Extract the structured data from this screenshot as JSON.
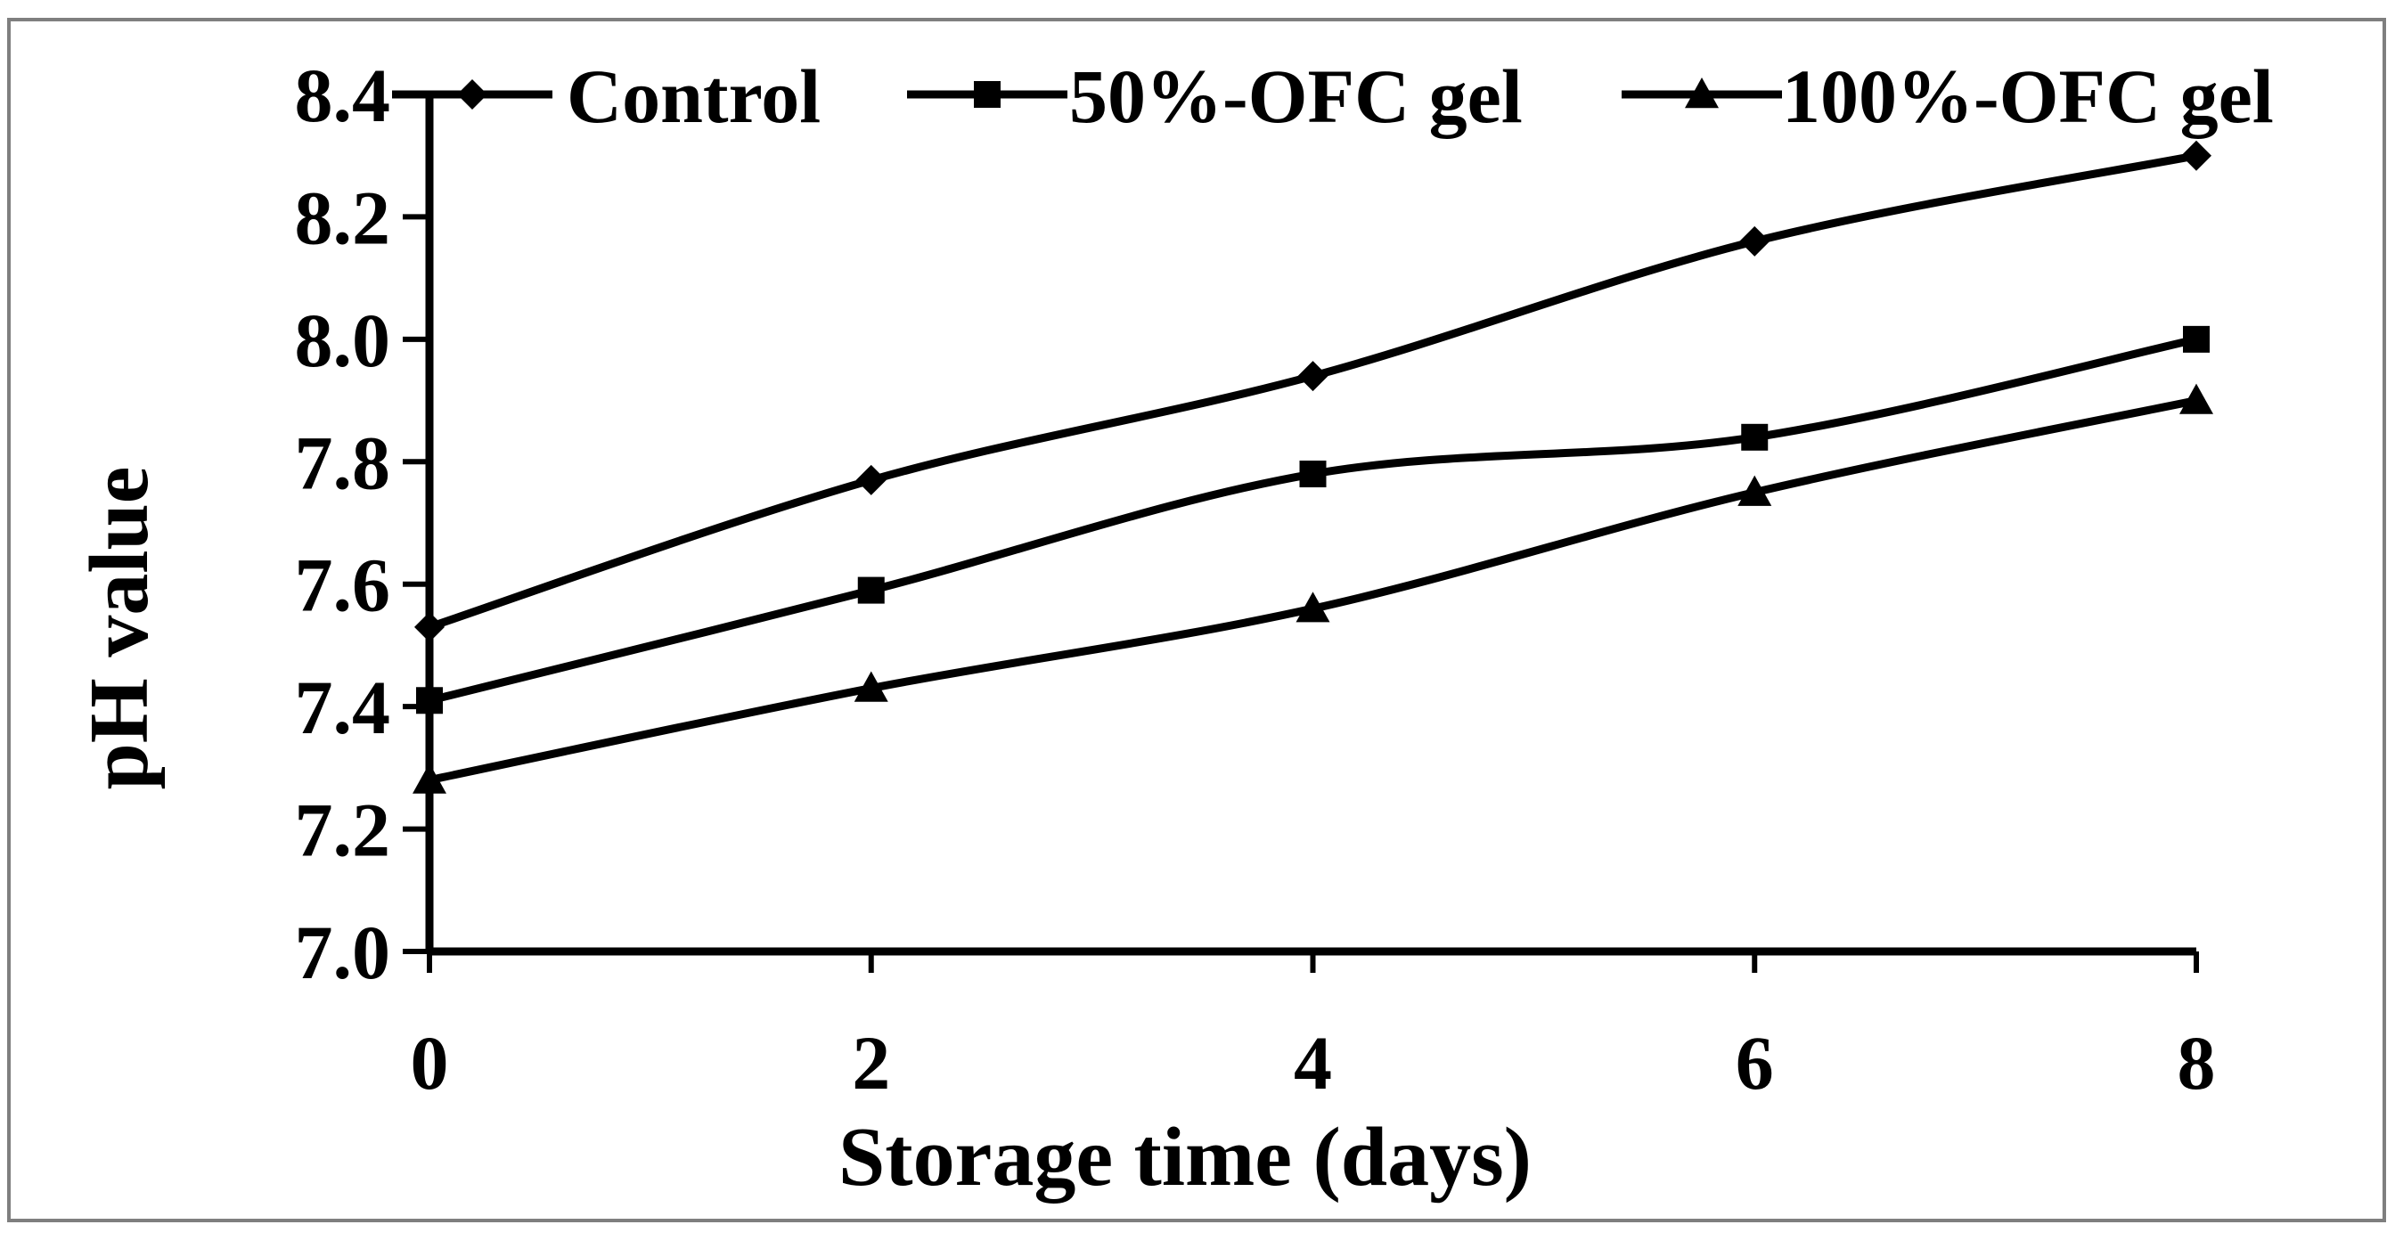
{
  "chart_data": {
    "type": "line",
    "title": "",
    "xlabel": "Storage time (days)",
    "ylabel": "pH value",
    "x": [
      0,
      2,
      4,
      6,
      8
    ],
    "xticks": [
      0,
      2,
      4,
      6,
      8
    ],
    "xtick_labels": [
      "0",
      "2",
      "4",
      "6",
      "8"
    ],
    "yticks": [
      7.0,
      7.2,
      7.4,
      7.6,
      7.8,
      8.0,
      8.2,
      8.4
    ],
    "ytick_labels": [
      "7.0",
      "7.2",
      "7.4",
      "7.6",
      "7.8",
      "8.0",
      "8.2",
      "8.4"
    ],
    "xlim": [
      0,
      8
    ],
    "ylim": [
      7.0,
      8.4
    ],
    "grid": false,
    "legend_position": "top",
    "series": [
      {
        "name": "Control",
        "marker": "diamond",
        "values": [
          7.53,
          7.77,
          7.94,
          8.16,
          8.3
        ]
      },
      {
        "name": "50%-OFC gel",
        "marker": "square",
        "values": [
          7.41,
          7.59,
          7.78,
          7.84,
          8.0
        ]
      },
      {
        "name": "100%-OFC gel",
        "marker": "triangle",
        "values": [
          7.28,
          7.43,
          7.56,
          7.75,
          7.9
        ]
      }
    ],
    "colors": {
      "line": "#000000",
      "frame": "#7f7f7f",
      "background": "#ffffff"
    }
  }
}
